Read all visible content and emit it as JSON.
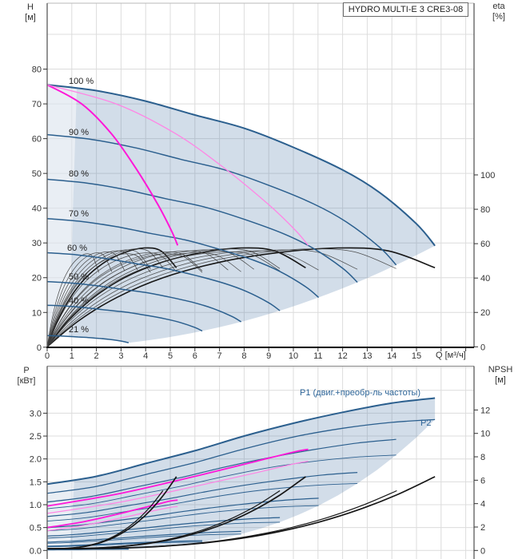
{
  "title_box": {
    "label": "HYDRO MULTI-E 3 CRE3-08"
  },
  "top_chart": {
    "y_left_unit": [
      "H",
      "[м]"
    ],
    "y_right_unit": [
      "eta",
      "[%]"
    ],
    "x_axis_label": "Q [м³/ч]",
    "x_ticks": [
      "0",
      "1",
      "2",
      "3",
      "4",
      "5",
      "6",
      "7",
      "8",
      "9",
      "10",
      "11",
      "12",
      "13",
      "14",
      "15"
    ],
    "y_left_ticks": [
      "80",
      "70",
      "60",
      "50",
      "40",
      "30",
      "20",
      "10",
      "0"
    ],
    "y_right_ticks": [
      "100",
      "80",
      "60",
      "40",
      "20",
      "0"
    ],
    "speed_labels": [
      "100 %",
      "90 %",
      "80 %",
      "70 %",
      "60 %",
      "50 %",
      "40 %",
      "21 %"
    ]
  },
  "bottom_chart": {
    "y_left_unit": [
      "P",
      "[кВт]"
    ],
    "y_right_unit": [
      "NPSH",
      "[м]"
    ],
    "y_left_ticks": [
      "3.0",
      "2.5",
      "2.0",
      "1.5",
      "1.0",
      "0.5",
      "0.0"
    ],
    "y_right_ticks": [
      "12",
      "10",
      "8",
      "6",
      "4",
      "2",
      "0"
    ],
    "p1_label": "P1 (двиг.+преобр-ль частоты)",
    "p2_label": "P2"
  },
  "colors": {
    "curve_blue": "#2b5f8e",
    "magenta_bright": "#ff18d8",
    "magenta_light": "#ff85e5",
    "eta_black": "#161616",
    "eta_gray": "#3d3d3d",
    "envelope_fill": "#4a78a8",
    "grid": "#dcdcdc",
    "frame": "#5a5a5a",
    "axis_black": "#000000",
    "label_blue": "#2e6598"
  },
  "chart_data": [
    {
      "type": "line",
      "id": "hq",
      "title": "HYDRO MULTI-E 3 CRE3-08",
      "xlabel": "Q [м³/ч]",
      "ylabel_left": "H [м]",
      "ylabel_right": "eta [%]",
      "x_range": [
        0,
        17.3
      ],
      "y_left_range": [
        0,
        99
      ],
      "y_right_range": [
        0,
        100
      ],
      "grid": true,
      "legend_position": "none",
      "q_max": 15.75,
      "speed_fractions": [
        1.0,
        0.9,
        0.8,
        0.7,
        0.6,
        0.5,
        0.4,
        0.21
      ],
      "speed_start_heads_m": [
        75.5,
        61.2,
        48.3,
        37.0,
        27.2,
        18.9,
        12.1,
        3.3
      ],
      "curve_100_HQ": [
        [
          0,
          75.5
        ],
        [
          2,
          73.8
        ],
        [
          4,
          70.8
        ],
        [
          6,
          66.8
        ],
        [
          8,
          63.0
        ],
        [
          10,
          57.5
        ],
        [
          12,
          51.0
        ],
        [
          13.5,
          44.5
        ],
        [
          15,
          35.5
        ],
        [
          15.75,
          29.2
        ]
      ],
      "min_speed_envelope": "H = 29.2*(Q/15.75)^2",
      "control_curves": [
        {
          "style": "thick-magenta",
          "points": [
            [
              0,
              75.5
            ],
            [
              1.4,
              70.0
            ],
            [
              2.6,
              61.5
            ],
            [
              3.6,
              51.5
            ],
            [
              4.5,
              41.0
            ],
            [
              5.05,
              33.5
            ],
            [
              5.3,
              29.3
            ]
          ]
        },
        {
          "style": "thin-pink",
          "points": [
            [
              0,
              75.5
            ],
            [
              2.8,
              70.0
            ],
            [
              5.2,
              61.5
            ],
            [
              7.2,
              51.5
            ],
            [
              9.0,
              41.0
            ],
            [
              10.1,
              33.5
            ],
            [
              10.6,
              29.3
            ]
          ]
        }
      ],
      "eta_max_pct": 57.5,
      "eta_shape": [
        [
          0,
          0
        ],
        [
          0.08,
          0.26
        ],
        [
          0.18,
          0.5
        ],
        [
          0.3,
          0.7
        ],
        [
          0.45,
          0.86
        ],
        [
          0.6,
          0.955
        ],
        [
          0.75,
          1.0
        ],
        [
          0.88,
          0.97
        ],
        [
          1.0,
          0.8
        ]
      ],
      "eta_pump_counts": [
        1,
        2,
        3
      ],
      "eta_speed_fractions": [
        1.0,
        0.9,
        0.8,
        0.7,
        0.6,
        0.5,
        0.4
      ],
      "q_max_per_pump": 5.25
    },
    {
      "type": "line",
      "id": "pq",
      "xlabel": "Q [м³/ч]",
      "ylabel_left": "P [кВт]",
      "ylabel_right": "NPSH [м]",
      "y_left_range": [
        0,
        4.0
      ],
      "y_right_range": [
        0,
        14
      ],
      "grid": true,
      "p1_label": "P1 (двиг.+преобр-ль частоты)",
      "p2_label": "P2",
      "speed_fractions": [
        1.0,
        0.9,
        0.8,
        0.7,
        0.6,
        0.5,
        0.4,
        0.21
      ],
      "curve_P1_100": [
        [
          0,
          1.45
        ],
        [
          2,
          1.62
        ],
        [
          4,
          1.9
        ],
        [
          6,
          2.18
        ],
        [
          8,
          2.5
        ],
        [
          10,
          2.78
        ],
        [
          12,
          3.02
        ],
        [
          14,
          3.22
        ],
        [
          15.75,
          3.33
        ]
      ],
      "curve_P2_100": [
        [
          0,
          1.25
        ],
        [
          2,
          1.4
        ],
        [
          4,
          1.66
        ],
        [
          6,
          1.92
        ],
        [
          8,
          2.22
        ],
        [
          10,
          2.48
        ],
        [
          12,
          2.67
        ],
        [
          14,
          2.8
        ],
        [
          15.75,
          2.86
        ]
      ],
      "control_power_curves": [
        {
          "style": "thick-magenta",
          "points": [
            [
              0,
              0.5
            ],
            [
              1.5,
              0.63
            ],
            [
              3,
              0.81
            ],
            [
              4.25,
              0.98
            ],
            [
              5,
              1.08
            ],
            [
              5.3,
              1.1
            ]
          ]
        },
        {
          "style": "thin-pink",
          "points": [
            [
              0,
              0.43
            ],
            [
              1.5,
              0.55
            ],
            [
              3,
              0.71
            ],
            [
              4.25,
              0.86
            ],
            [
              5,
              0.94
            ],
            [
              5.3,
              0.96
            ]
          ]
        },
        {
          "style": "thick-magenta",
          "points": [
            [
              0,
              0.97
            ],
            [
              3,
              1.25
            ],
            [
              6,
              1.62
            ],
            [
              8.5,
              1.95
            ],
            [
              10,
              2.15
            ],
            [
              10.6,
              2.21
            ]
          ]
        },
        {
          "style": "thin-pink",
          "points": [
            [
              0,
              0.81
            ],
            [
              3,
              1.06
            ],
            [
              6,
              1.4
            ],
            [
              8.5,
              1.7
            ],
            [
              10,
              1.89
            ],
            [
              10.6,
              1.95
            ]
          ]
        }
      ],
      "npsh_curves": [
        {
          "pumps": 1,
          "end_q": 5.25,
          "end_npsh": 6.3,
          "thick": true
        },
        {
          "pumps": 2,
          "end_q": 10.5,
          "end_npsh": 6.3,
          "thick": true
        },
        {
          "pumps": 3,
          "end_q": 15.75,
          "end_npsh": 6.3,
          "thick": true
        },
        {
          "pumps": 1,
          "end_q": 4.7,
          "end_npsh": 5.1,
          "thick": false
        },
        {
          "pumps": 2,
          "end_q": 9.45,
          "end_npsh": 5.1,
          "thick": false
        },
        {
          "pumps": 3,
          "end_q": 14.2,
          "end_npsh": 5.1,
          "thick": false
        }
      ]
    }
  ]
}
